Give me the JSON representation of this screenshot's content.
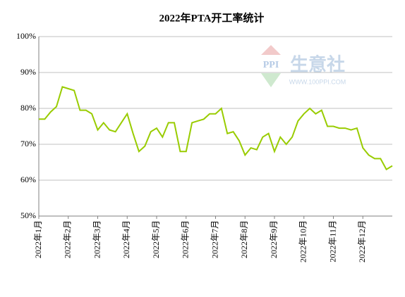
{
  "chart_data": {
    "type": "line",
    "title": "2022年PTA开工率统计",
    "watermark": {
      "text": "生意社",
      "url": "WWW.100PPI.COM",
      "logo": "PPI"
    },
    "categories": [
      "2022年1月",
      null,
      null,
      null,
      null,
      "2022年2月",
      null,
      null,
      null,
      null,
      "2022年3月",
      null,
      null,
      null,
      null,
      "2022年4月",
      null,
      null,
      null,
      null,
      "2022年5月",
      null,
      null,
      null,
      null,
      "2022年6月",
      null,
      null,
      null,
      null,
      "2022年7月",
      null,
      null,
      null,
      null,
      "2022年8月",
      null,
      null,
      null,
      null,
      "2022年9月",
      null,
      null,
      null,
      null,
      "2022年10月",
      null,
      null,
      null,
      null,
      "2022年11月",
      null,
      null,
      null,
      null,
      "2022年12月",
      null,
      null,
      null,
      null,
      null
    ],
    "series": [
      {
        "name": "PTA开工率",
        "color": "#99cc00",
        "values": [
          77,
          77,
          79,
          80.5,
          86,
          85.5,
          85,
          79.5,
          79.5,
          78.5,
          74,
          76,
          74,
          73.5,
          76,
          78.5,
          73,
          68,
          69.5,
          73.5,
          74.5,
          72,
          76,
          76,
          68,
          68,
          76,
          76.5,
          77,
          78.5,
          78.5,
          80,
          73,
          73.5,
          71,
          67,
          69,
          68.5,
          72,
          73,
          68,
          72,
          70,
          72,
          76.5,
          78.5,
          80,
          78.5,
          79.5,
          75,
          75,
          74.5,
          74.5,
          74,
          74.5,
          69,
          67,
          66,
          66,
          63,
          64
        ]
      }
    ],
    "ylim": [
      50,
      100
    ],
    "yticks": [
      {
        "value": 50,
        "label": "50%"
      },
      {
        "value": 60,
        "label": "60%"
      },
      {
        "value": 70,
        "label": "70%"
      },
      {
        "value": 80,
        "label": "80%"
      },
      {
        "value": 90,
        "label": "90%"
      },
      {
        "value": 100,
        "label": "100%"
      }
    ],
    "grid": true
  }
}
